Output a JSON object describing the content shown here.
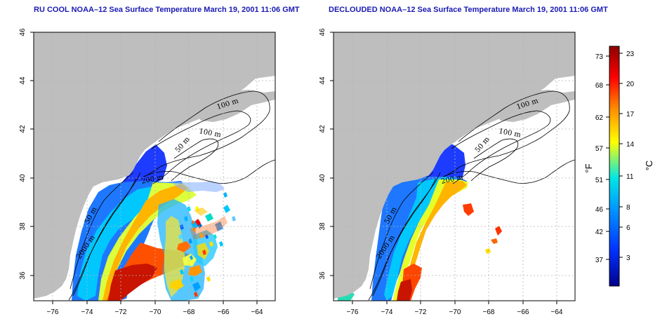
{
  "panels": [
    {
      "id": "ru-cool",
      "title": "RU COOL NOAA–12 Sea Surface Temperature March 19, 2001 11:06 GMT",
      "contour_labels": [
        "100 m",
        "100 m",
        "50 m",
        "200 m",
        "50 m",
        "2000 m"
      ]
    },
    {
      "id": "declouded",
      "title": "DECLOUDED NOAA–12 Sea Surface Temperature March 19, 2001 11:06 GMT",
      "contour_labels": [
        "100 m",
        "100 m",
        "50 m",
        "200 m",
        "50 m",
        "2000 m"
      ]
    }
  ],
  "axes": {
    "x_ticks": [
      "−76",
      "−74",
      "−72",
      "−70",
      "−68",
      "−66",
      "−64"
    ],
    "y_ticks": [
      "36",
      "38",
      "40",
      "42",
      "44",
      "46"
    ],
    "lon_range": [
      -77.2,
      -63.0
    ],
    "lat_range": [
      35.0,
      46.0
    ],
    "grid": true
  },
  "colorbar": {
    "fahrenheit_label": "°F",
    "celsius_label": "°C",
    "fahrenheit_ticks": [
      "73",
      "68",
      "62",
      "57",
      "51",
      "46",
      "42",
      "37"
    ],
    "celsius_ticks": [
      "23",
      "20",
      "17",
      "14",
      "11",
      "8",
      "6",
      "3"
    ],
    "celsius_range": [
      0,
      24
    ],
    "colors": [
      "#00008c",
      "#0032ff",
      "#0096ff",
      "#00e6e6",
      "#ffff00",
      "#ff8c00",
      "#ff0000",
      "#8c0000"
    ]
  },
  "colors": {
    "land": "#bebebe",
    "grid": "#b4b4b4",
    "contour": "#000000",
    "title": "#1a1ab4"
  }
}
